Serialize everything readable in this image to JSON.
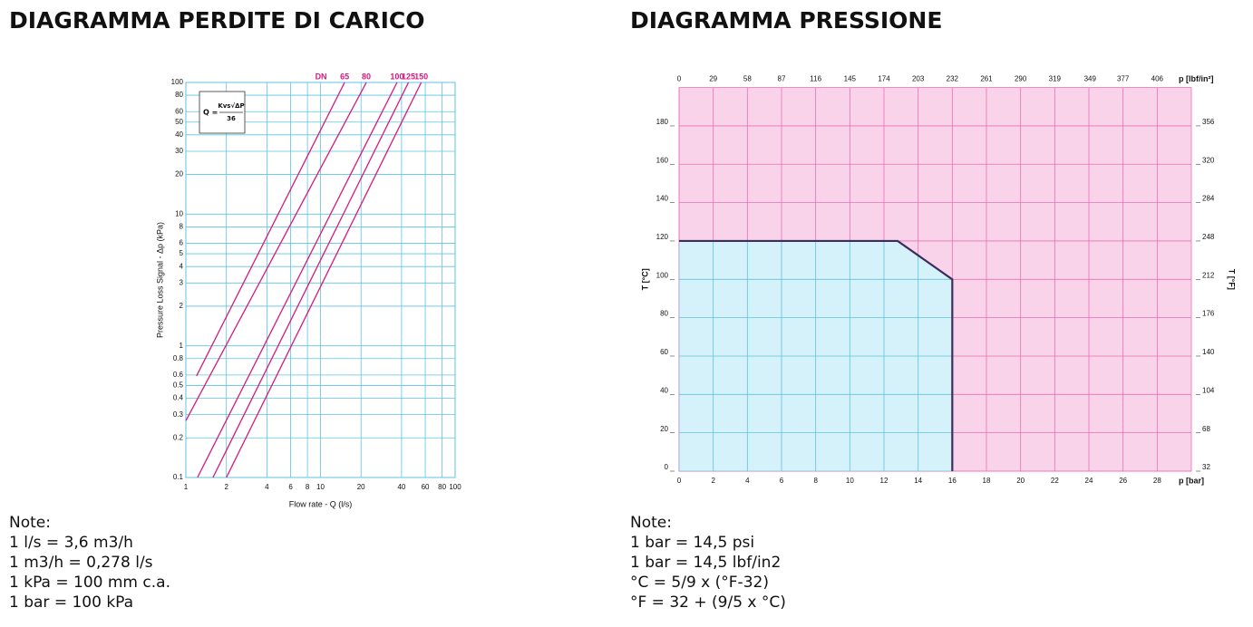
{
  "chart_data": [
    {
      "type": "line",
      "title": "DIAGRAMMA PERDITE DI CARICO",
      "xlabel": "Flow rate - Q (l/s)",
      "ylabel": "Pressure Loss Signal - Δp (kPa)",
      "xscale": "log",
      "yscale": "log",
      "grid": true,
      "grid_color": "#5cc3e6",
      "xlim": [
        1,
        100
      ],
      "xticks": [
        1,
        2,
        4,
        6,
        8,
        10,
        20,
        40,
        60,
        80,
        100
      ],
      "ylim": [
        0.1,
        100
      ],
      "yticks": [
        0.1,
        0.2,
        0.3,
        0.4,
        0.5,
        0.6,
        0.8,
        1,
        2,
        3,
        4,
        5,
        6,
        8,
        10,
        20,
        30,
        40,
        50,
        60,
        80,
        100
      ],
      "legend_title": "DN",
      "formula": {
        "lhs": "Q =",
        "numerator": "Kvs√ΔP",
        "denominator": "36"
      },
      "series": [
        {
          "name": "65",
          "color": "#d6197f",
          "x": [
            1.2,
            15.1
          ],
          "values": [
            0.59,
            100
          ]
        },
        {
          "name": "80",
          "color": "#d6197f",
          "x": [
            1,
            21.9
          ],
          "values": [
            0.27,
            100
          ]
        },
        {
          "name": "100",
          "color": "#d6197f",
          "x": [
            1.22,
            37
          ],
          "values": [
            0.1,
            100
          ]
        },
        {
          "name": "125",
          "color": "#d6197f",
          "x": [
            1.59,
            45
          ],
          "values": [
            0.1,
            100
          ]
        },
        {
          "name": "150",
          "color": "#d6197f",
          "x": [
            2,
            56
          ],
          "values": [
            0.1,
            100
          ]
        }
      ]
    },
    {
      "type": "area",
      "title": "DIAGRAMMA PRESSIONE",
      "xlabel": "p [bar]",
      "x2label": "p [lbf/in²]",
      "ylabel": "T [°C]",
      "y2label": "T [°F]",
      "grid": true,
      "grid_color": "#ec6fb6",
      "background_color": "#f9d3e9",
      "xlim": [
        0,
        30
      ],
      "xticks": [
        0,
        2,
        4,
        6,
        8,
        10,
        12,
        14,
        16,
        18,
        20,
        22,
        24,
        26,
        28
      ],
      "x2lim": [
        0,
        435
      ],
      "x2ticks": [
        0,
        29,
        58,
        87,
        116,
        145,
        174,
        203,
        232,
        261,
        290,
        319,
        349,
        377,
        406
      ],
      "ylim": [
        0,
        200
      ],
      "yticks": [
        0,
        20,
        40,
        60,
        80,
        100,
        120,
        140,
        160,
        180
      ],
      "y2lim": [
        32,
        392
      ],
      "y2ticks": [
        32,
        68,
        104,
        140,
        176,
        212,
        248,
        284,
        320,
        356
      ],
      "series": [
        {
          "color": "#d5f1f9",
          "line_color": "#3b2d5c",
          "grid_color": "#5ec4e2",
          "x": [
            0,
            12.8,
            16,
            16
          ],
          "values": [
            120,
            120,
            100,
            0
          ]
        }
      ]
    }
  ],
  "notes": [
    {
      "heading": "Note:",
      "lines": [
        "1 l/s = 3,6 m3/h",
        "1 m3/h = 0,278 l/s",
        "1 kPa = 100 mm c.a.",
        "1 bar = 100 kPa"
      ]
    },
    {
      "heading": "Note:",
      "lines": [
        "1 bar = 14,5 psi",
        "1 bar = 14,5 lbf/in2",
        "°C = 5/9 x (°F-32)",
        "°F = 32 + (9/5 x °C)"
      ]
    }
  ]
}
